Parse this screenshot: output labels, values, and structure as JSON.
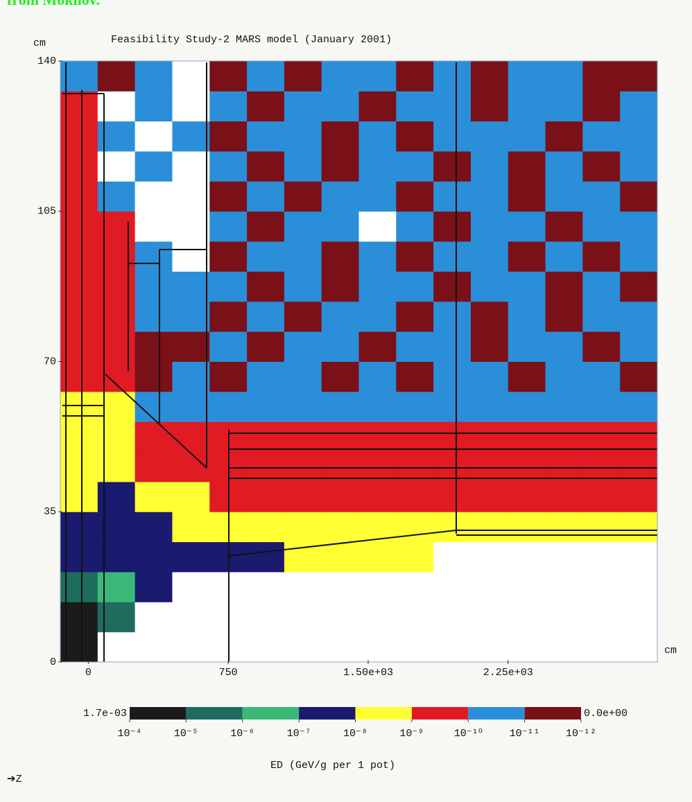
{
  "header": {
    "note": "from Mokhov."
  },
  "chart_data": {
    "type": "heatmap",
    "title": "Feasibility Study-2 MARS model (January 2001)",
    "y_unit": "cm",
    "x_unit": "cm",
    "direction_label": "➔Z",
    "xlim": [
      -150,
      3050
    ],
    "ylim": [
      0,
      140
    ],
    "xticks": [
      0,
      750,
      {
        "value": 1500,
        "label": "1.50e+03"
      },
      {
        "value": 2250,
        "label": "2.25e+03"
      }
    ],
    "yticks": [
      0,
      35,
      70,
      105,
      140
    ],
    "xbins": [
      -150,
      50,
      250,
      450,
      650,
      850,
      1050,
      1250,
      1450,
      1650,
      1850,
      2050,
      2250,
      2450,
      2650,
      2850,
      3050
    ],
    "ybins": [
      0,
      7,
      14,
      21,
      28,
      35,
      42,
      49,
      56,
      63,
      70,
      77,
      84,
      91,
      98,
      105,
      112,
      119,
      126,
      133,
      140
    ],
    "z": [
      [
        3e-05,
        0,
        0,
        0,
        0,
        0,
        0,
        0,
        0,
        0,
        0,
        0,
        0,
        0,
        0,
        0
      ],
      [
        3e-05,
        3e-06,
        0,
        0,
        0,
        0,
        0,
        0,
        0,
        0,
        0,
        0,
        0,
        0,
        0,
        0
      ],
      [
        3e-06,
        3e-07,
        3e-08,
        0,
        0,
        0,
        0,
        0,
        0,
        0,
        0,
        0,
        0,
        0,
        0,
        0
      ],
      [
        3e-08,
        3e-08,
        3e-08,
        3e-08,
        3e-08,
        3e-08,
        3e-09,
        3e-09,
        3e-09,
        3e-09,
        0,
        0,
        0,
        0,
        0,
        0
      ],
      [
        3e-08,
        3e-08,
        3e-08,
        3e-09,
        3e-09,
        3e-09,
        3e-09,
        3e-09,
        3e-09,
        3e-09,
        3e-09,
        3e-09,
        3e-09,
        3e-09,
        3e-09,
        3e-09
      ],
      [
        3e-09,
        3e-08,
        3e-09,
        3e-09,
        3e-10,
        3e-10,
        3e-10,
        3e-10,
        3e-10,
        3e-10,
        3e-10,
        3e-10,
        3e-10,
        3e-10,
        3e-10,
        3e-10
      ],
      [
        3e-09,
        3e-09,
        3e-10,
        3e-10,
        3e-10,
        3e-10,
        3e-10,
        3e-10,
        3e-10,
        3e-10,
        3e-10,
        3e-10,
        3e-10,
        3e-10,
        3e-10,
        3e-10
      ],
      [
        3e-09,
        3e-09,
        3e-10,
        3e-10,
        3e-10,
        3e-10,
        3e-10,
        3e-10,
        3e-10,
        3e-10,
        3e-10,
        3e-10,
        3e-10,
        3e-10,
        3e-10,
        3e-10
      ],
      [
        3e-09,
        3e-09,
        3e-11,
        3e-11,
        3e-11,
        3e-11,
        3e-11,
        3e-11,
        3e-11,
        3e-11,
        3e-11,
        3e-11,
        3e-11,
        3e-11,
        3e-11,
        3e-11
      ],
      [
        3e-10,
        3e-10,
        3e-12,
        3e-11,
        3e-12,
        3e-11,
        3e-11,
        3e-12,
        3e-11,
        3e-12,
        3e-11,
        3e-11,
        3e-12,
        3e-11,
        3e-11,
        3e-12
      ],
      [
        3e-10,
        3e-10,
        3e-12,
        3e-12,
        3e-11,
        3e-12,
        3e-11,
        3e-11,
        3e-12,
        3e-11,
        3e-11,
        3e-12,
        3e-11,
        3e-11,
        3e-12,
        3e-11
      ],
      [
        3e-10,
        3e-10,
        3e-11,
        3e-11,
        3e-12,
        3e-11,
        3e-12,
        3e-11,
        3e-11,
        3e-12,
        3e-11,
        3e-12,
        3e-11,
        3e-12,
        3e-11,
        3e-11
      ],
      [
        3e-10,
        3e-10,
        3e-11,
        3e-11,
        3e-11,
        3e-12,
        3e-11,
        3e-12,
        3e-11,
        3e-11,
        3e-12,
        3e-11,
        3e-11,
        3e-12,
        3e-11,
        3e-12
      ],
      [
        3e-10,
        3e-10,
        3e-11,
        0,
        3e-12,
        3e-11,
        3e-11,
        3e-12,
        3e-11,
        3e-12,
        3e-11,
        3e-11,
        3e-12,
        3e-11,
        3e-12,
        3e-11
      ],
      [
        3e-10,
        3e-10,
        0,
        0,
        3e-11,
        3e-12,
        3e-11,
        3e-11,
        0,
        3e-11,
        3e-12,
        3e-11,
        3e-11,
        3e-12,
        3e-11,
        3e-11
      ],
      [
        3e-10,
        3e-11,
        0,
        0,
        3e-12,
        3e-11,
        3e-12,
        3e-11,
        3e-11,
        3e-12,
        3e-11,
        3e-11,
        3e-12,
        3e-11,
        3e-11,
        3e-12
      ],
      [
        3e-10,
        0,
        3e-11,
        0,
        3e-11,
        3e-12,
        3e-11,
        3e-12,
        3e-11,
        3e-11,
        3e-12,
        3e-11,
        3e-12,
        3e-11,
        3e-12,
        3e-11
      ],
      [
        3e-10,
        3e-11,
        0,
        3e-11,
        3e-12,
        3e-11,
        3e-11,
        3e-12,
        3e-11,
        3e-12,
        3e-11,
        3e-11,
        3e-11,
        3e-12,
        3e-11,
        3e-11
      ],
      [
        3e-10,
        0,
        3e-11,
        0,
        3e-11,
        3e-12,
        3e-11,
        3e-11,
        3e-12,
        3e-11,
        3e-11,
        3e-12,
        3e-11,
        3e-11,
        3e-12,
        3e-11
      ],
      [
        3e-11,
        3e-12,
        3e-11,
        0,
        3e-12,
        3e-11,
        3e-12,
        3e-11,
        3e-11,
        3e-12,
        3e-11,
        3e-12,
        3e-11,
        3e-11,
        3e-12,
        3e-12
      ]
    ],
    "colorbar": {
      "label": "ED (GeV/g per 1 pot)",
      "max": {
        "value": 0.0017,
        "label": "1.7e-03"
      },
      "min": {
        "value": 0,
        "label": "0.0e+00"
      },
      "ticks": [
        {
          "value": 0.0001,
          "label": "10⁻⁴"
        },
        {
          "value": 1e-05,
          "label": "10⁻⁵"
        },
        {
          "value": 1e-06,
          "label": "10⁻⁶"
        },
        {
          "value": 1e-07,
          "label": "10⁻⁷"
        },
        {
          "value": 1e-08,
          "label": "10⁻⁸"
        },
        {
          "value": 1e-09,
          "label": "10⁻⁹"
        },
        {
          "value": 1e-10,
          "label": "10⁻¹⁰"
        },
        {
          "value": 1e-11,
          "label": "10⁻¹¹"
        },
        {
          "value": 1e-12,
          "label": "10⁻¹²"
        }
      ],
      "colors": [
        "#1b1b1b",
        "#1f6b5e",
        "#3cb878",
        "#1a1a6e",
        "#ffff33",
        "#e01b24",
        "#2a8fd8",
        "#7a1018"
      ]
    }
  }
}
